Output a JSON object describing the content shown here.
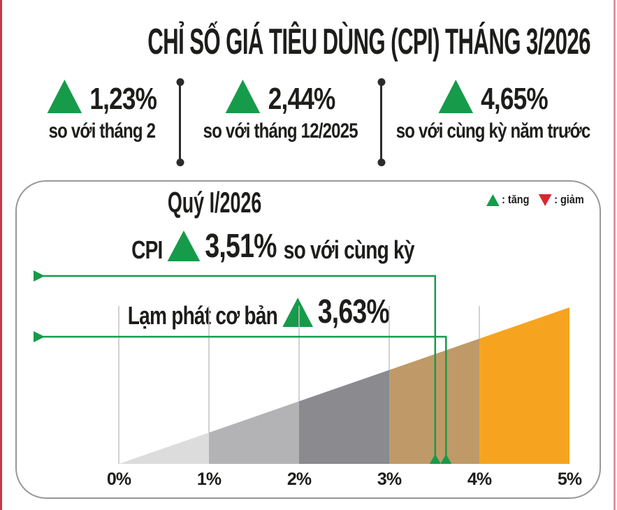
{
  "header": {
    "title": "CHỈ SỐ GIÁ TIÊU DÙNG (CPI) THÁNG 3/2026"
  },
  "stats": [
    {
      "direction": "up",
      "value": "1,23%",
      "label": "so với tháng 2"
    },
    {
      "direction": "up",
      "value": "2,44%",
      "label": "so với tháng 12/2025"
    },
    {
      "direction": "up",
      "value": "4,65%",
      "label": "so với cùng kỳ năm trước"
    }
  ],
  "chart_data": {
    "type": "area",
    "title": "Quý I/2026",
    "xlabel": "",
    "ylabel": "",
    "x_range": [
      0,
      5
    ],
    "x_ticks": [
      "0%",
      "1%",
      "2%",
      "3%",
      "4%",
      "5%"
    ],
    "grid": true,
    "wedge_segments": [
      {
        "from": 0,
        "to": 1,
        "color": "#dcdcdc"
      },
      {
        "from": 1,
        "to": 2,
        "color": "#b3b3b5"
      },
      {
        "from": 2,
        "to": 3,
        "color": "#8a8a8f"
      },
      {
        "from": 3,
        "to": 4,
        "color": "#bf9a68"
      },
      {
        "from": 4,
        "to": 5,
        "color": "#f6a41f"
      }
    ],
    "markers": [
      {
        "name": "CPI",
        "value": 3.51,
        "display": "3,51%",
        "suffix": "so với cùng kỳ",
        "direction": "up"
      },
      {
        "name": "Lạm phát cơ bản",
        "value": 3.63,
        "display": "3,63%",
        "direction": "up"
      }
    ],
    "legend": [
      {
        "symbol": "triangle-up",
        "label": ": tăng",
        "color": "#169b4a"
      },
      {
        "symbol": "triangle-down",
        "label": ": giảm",
        "color": "#d7282f"
      }
    ],
    "legend_position": "top-right"
  },
  "colors": {
    "green": "#169b4a",
    "red": "#d7282f",
    "edge_red": "#c23a48",
    "orange": "#f6a41f",
    "tan": "#bf9a68",
    "gray_dark": "#8a8a8f",
    "gray_mid": "#b3b3b5",
    "gray_light": "#dcdcdc",
    "panel_border": "#98989a",
    "gridline": "#c3c3c5",
    "text": "#1d1d1b"
  }
}
